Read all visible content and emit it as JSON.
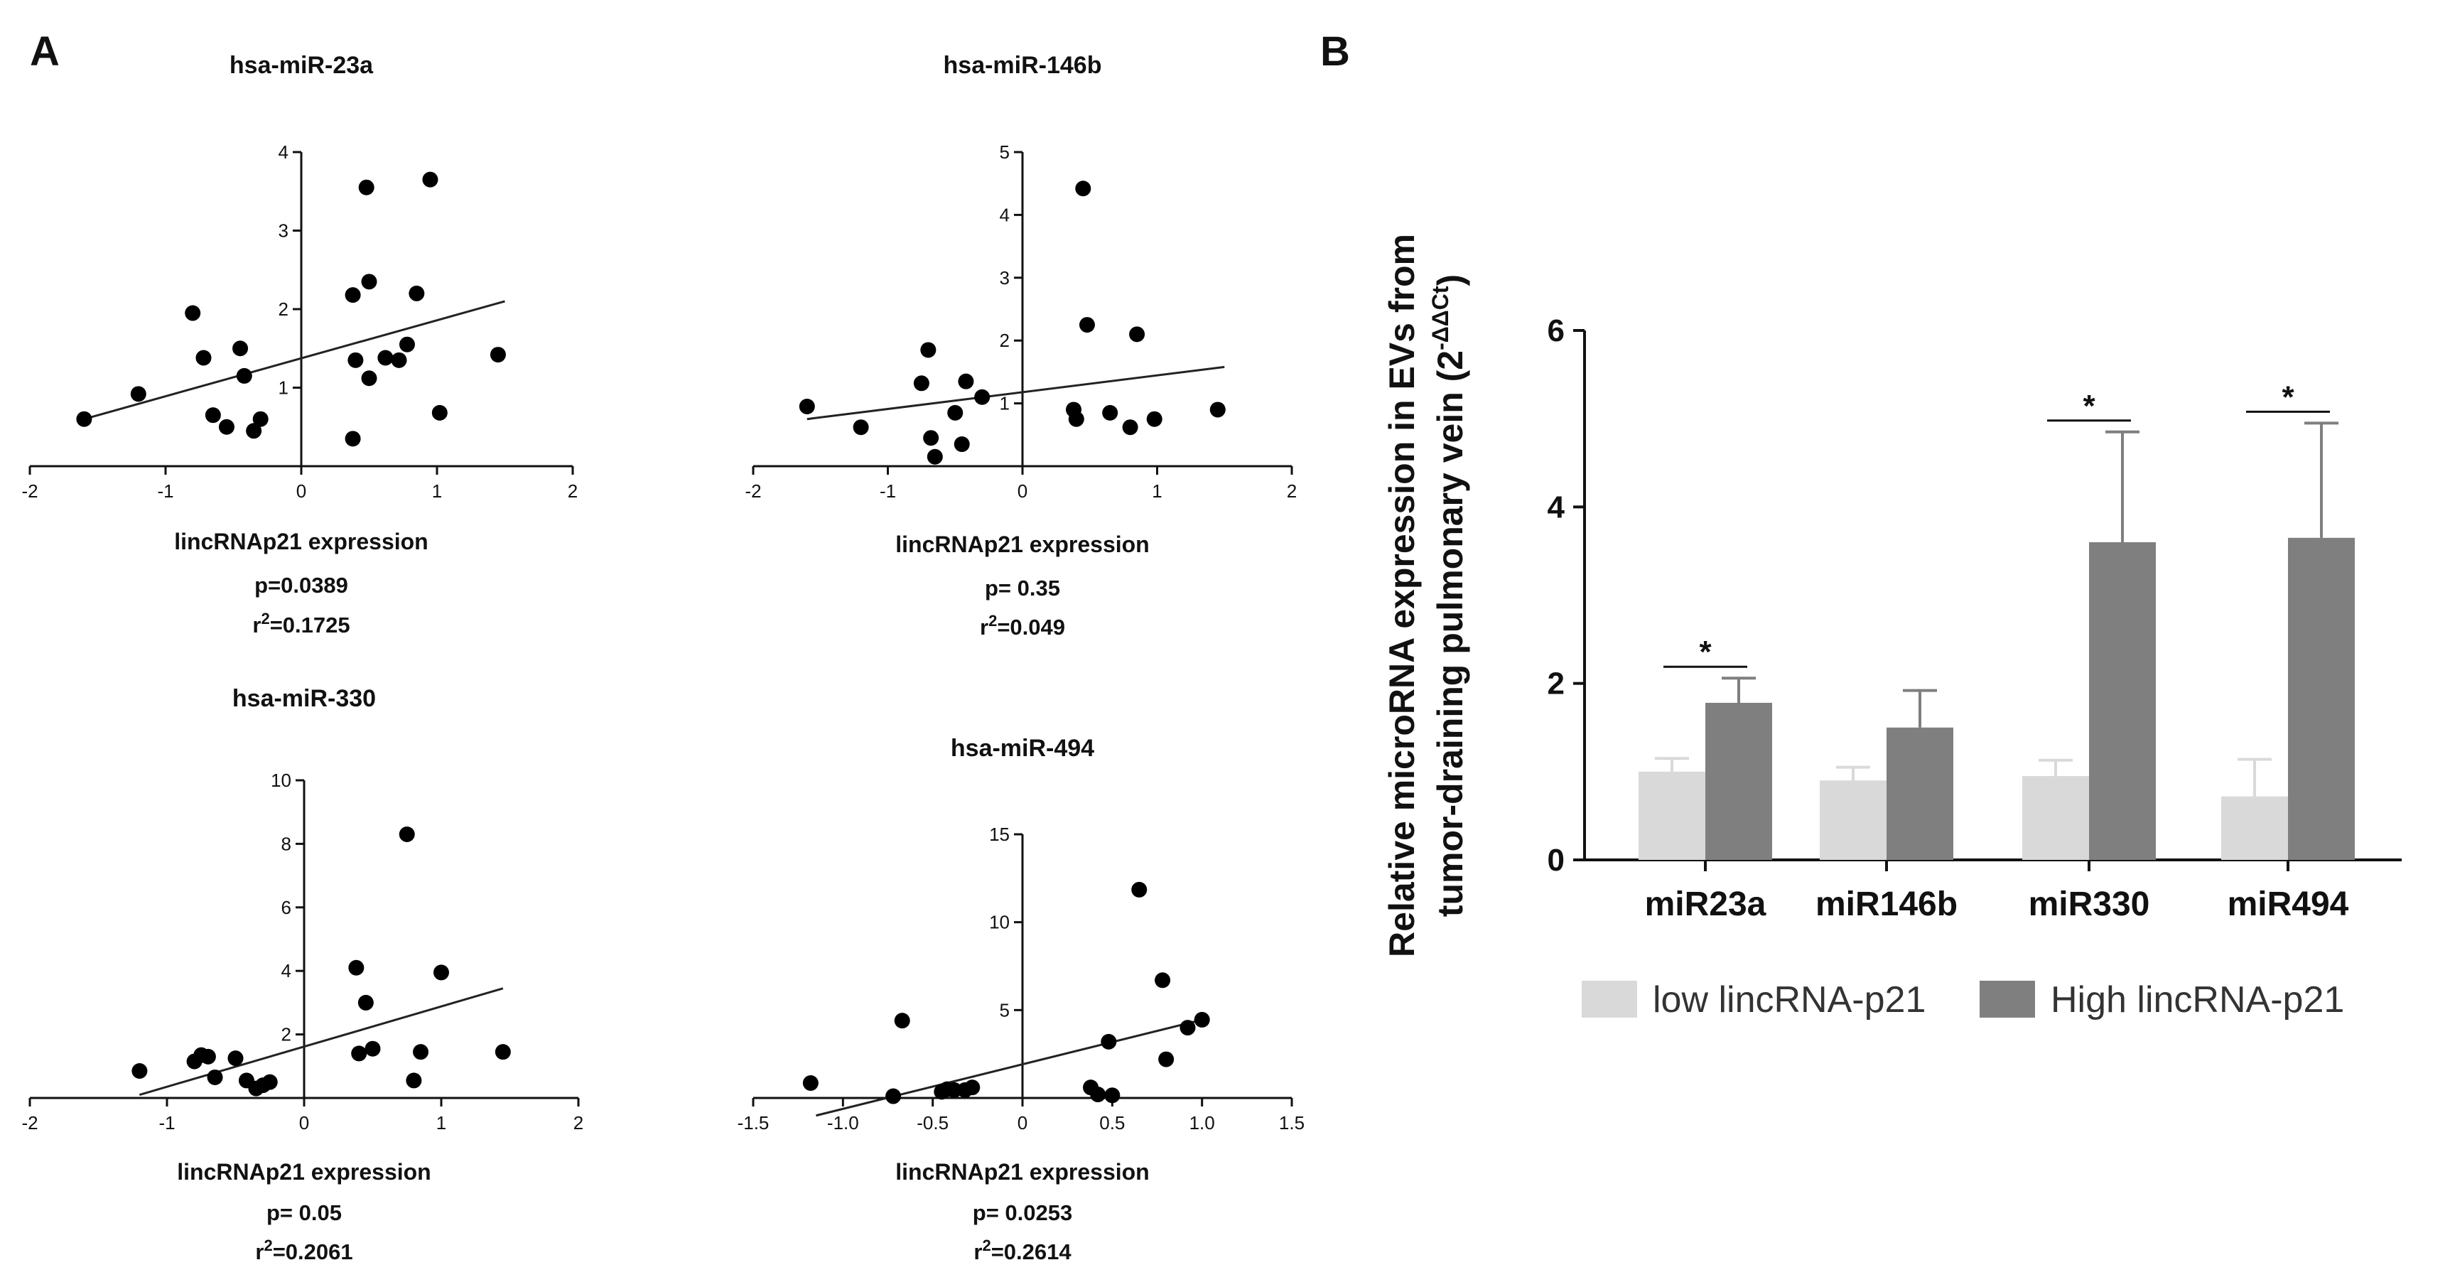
{
  "panels": {
    "a": "A",
    "b": "B"
  },
  "chart_data": [
    {
      "type": "scatter",
      "title": "hsa-miR-23a",
      "xlabel": "lincRNAp21 expression",
      "stat_p": "p=0.0389",
      "stat_r2_prefix": "r",
      "stat_r2_sup": "2",
      "stat_r2_value": "=0.1725",
      "xlim": [
        -2,
        2
      ],
      "ylim": [
        0,
        4
      ],
      "xticks": [
        -2,
        -1,
        0,
        1,
        2
      ],
      "yticks": [
        1,
        2,
        3,
        4
      ],
      "x_tick_labels": [
        "-2",
        "-1",
        "0",
        "1",
        "2"
      ],
      "y_tick_labels": [
        "1",
        "2",
        "3",
        "4"
      ],
      "points": [
        [
          -1.6,
          0.6
        ],
        [
          -1.2,
          0.92
        ],
        [
          -0.8,
          1.95
        ],
        [
          -0.72,
          1.38
        ],
        [
          -0.65,
          0.65
        ],
        [
          -0.55,
          0.5
        ],
        [
          -0.45,
          1.5
        ],
        [
          -0.42,
          1.15
        ],
        [
          -0.35,
          0.45
        ],
        [
          -0.3,
          0.6
        ],
        [
          0.38,
          0.35
        ],
        [
          0.4,
          1.35
        ],
        [
          0.38,
          2.18
        ],
        [
          0.48,
          3.55
        ],
        [
          0.5,
          2.35
        ],
        [
          0.5,
          1.12
        ],
        [
          0.62,
          1.38
        ],
        [
          0.72,
          1.35
        ],
        [
          0.78,
          1.55
        ],
        [
          0.85,
          2.2
        ],
        [
          0.95,
          3.65
        ],
        [
          1.02,
          0.68
        ],
        [
          1.45,
          1.42
        ]
      ],
      "fit": [
        [
          -1.6,
          0.6
        ],
        [
          1.5,
          2.1
        ]
      ]
    },
    {
      "type": "scatter",
      "title": "hsa-miR-146b",
      "xlabel": "lincRNAp21 expression",
      "stat_p": "p= 0.35",
      "stat_r2_prefix": "r",
      "stat_r2_sup": "2",
      "stat_r2_value": "=0.049",
      "xlim": [
        -2,
        2
      ],
      "ylim": [
        0,
        5
      ],
      "xticks": [
        -2,
        -1,
        0,
        1,
        2
      ],
      "yticks": [
        1,
        2,
        3,
        4,
        5
      ],
      "x_tick_labels": [
        "-2",
        "-1",
        "0",
        "1",
        "2"
      ],
      "y_tick_labels": [
        "1",
        "2",
        "3",
        "4",
        "5"
      ],
      "points": [
        [
          -1.6,
          0.95
        ],
        [
          -1.2,
          0.62
        ],
        [
          -0.75,
          1.32
        ],
        [
          -0.7,
          1.85
        ],
        [
          -0.68,
          0.45
        ],
        [
          -0.65,
          0.15
        ],
        [
          -0.5,
          0.85
        ],
        [
          -0.45,
          0.35
        ],
        [
          -0.42,
          1.35
        ],
        [
          -0.3,
          1.1
        ],
        [
          0.38,
          0.9
        ],
        [
          0.4,
          0.75
        ],
        [
          0.45,
          4.42
        ],
        [
          0.48,
          2.25
        ],
        [
          0.65,
          0.85
        ],
        [
          0.8,
          0.62
        ],
        [
          0.85,
          2.1
        ],
        [
          0.98,
          0.75
        ],
        [
          1.45,
          0.9
        ]
      ],
      "fit": [
        [
          -1.6,
          0.75
        ],
        [
          1.5,
          1.58
        ]
      ]
    },
    {
      "type": "scatter",
      "title": "hsa-miR-330",
      "xlabel": "lincRNAp21 expression",
      "stat_p": "p= 0.05",
      "stat_r2_prefix": "r",
      "stat_r2_sup": "2",
      "stat_r2_value": "=0.2061",
      "xlim": [
        -2,
        2
      ],
      "ylim": [
        0,
        10
      ],
      "xticks": [
        -2,
        -1,
        0,
        1,
        2
      ],
      "yticks": [
        2,
        4,
        6,
        8,
        10
      ],
      "x_tick_labels": [
        "-2",
        "-1",
        "0",
        "1",
        "2"
      ],
      "y_tick_labels": [
        "2",
        "4",
        "6",
        "8",
        "10"
      ],
      "points": [
        [
          -1.2,
          0.85
        ],
        [
          -0.8,
          1.15
        ],
        [
          -0.75,
          1.35
        ],
        [
          -0.7,
          1.3
        ],
        [
          -0.65,
          0.65
        ],
        [
          -0.5,
          1.25
        ],
        [
          -0.42,
          0.55
        ],
        [
          -0.35,
          0.3
        ],
        [
          -0.3,
          0.4
        ],
        [
          -0.25,
          0.5
        ],
        [
          0.38,
          4.1
        ],
        [
          0.4,
          1.4
        ],
        [
          0.45,
          3.0
        ],
        [
          0.5,
          1.55
        ],
        [
          0.75,
          8.3
        ],
        [
          0.8,
          0.55
        ],
        [
          0.85,
          1.45
        ],
        [
          1.0,
          3.95
        ],
        [
          1.45,
          1.45
        ]
      ],
      "fit": [
        [
          -1.2,
          0.1
        ],
        [
          1.45,
          3.45
        ]
      ]
    },
    {
      "type": "scatter",
      "title": "hsa-miR-494",
      "xlabel": "lincRNAp21 expression",
      "stat_p": "p= 0.0253",
      "stat_r2_prefix": "r",
      "stat_r2_sup": "2",
      "stat_r2_value": "=0.2614",
      "xlim": [
        -1.5,
        1.5
      ],
      "ylim": [
        0,
        15
      ],
      "xticks": [
        -1.5,
        -1.0,
        -0.5,
        0,
        0.5,
        1.0,
        1.5
      ],
      "yticks": [
        5,
        10,
        15
      ],
      "x_tick_labels": [
        "-1.5",
        "-1.0",
        "-0.5",
        "0",
        "0.5",
        "1.0",
        "1.5"
      ],
      "y_tick_labels": [
        "5",
        "10",
        "15"
      ],
      "points": [
        [
          -1.18,
          0.85
        ],
        [
          -0.72,
          0.1
        ],
        [
          -0.67,
          4.4
        ],
        [
          -0.45,
          0.35
        ],
        [
          -0.42,
          0.5
        ],
        [
          -0.38,
          0.45
        ],
        [
          -0.32,
          0.45
        ],
        [
          -0.28,
          0.6
        ],
        [
          0.38,
          0.6
        ],
        [
          0.42,
          0.2
        ],
        [
          0.48,
          3.2
        ],
        [
          0.5,
          0.15
        ],
        [
          0.65,
          11.85
        ],
        [
          0.78,
          6.7
        ],
        [
          0.8,
          2.2
        ],
        [
          0.92,
          4.0
        ],
        [
          1.0,
          4.45
        ]
      ],
      "fit": [
        [
          -1.15,
          -1.0
        ],
        [
          1.02,
          4.5
        ]
      ]
    },
    {
      "type": "bar",
      "categories": [
        "miR23a",
        "miR146b",
        "miR330",
        "miR494"
      ],
      "series": [
        {
          "name": "low lincRNA-p21",
          "color": "#d9d9d9",
          "values": [
            1.0,
            0.9,
            0.95,
            0.72
          ],
          "errors": [
            0.15,
            0.15,
            0.18,
            0.42
          ]
        },
        {
          "name": "High lincRNA-p21",
          "color": "#7f7f7f",
          "values": [
            1.78,
            1.5,
            3.6,
            3.65
          ],
          "errors": [
            0.28,
            0.42,
            1.25,
            1.3
          ]
        }
      ],
      "significance": [
        "*",
        "",
        "*",
        "*"
      ],
      "ylim": [
        0,
        6
      ],
      "yticks": [
        0,
        2,
        4,
        6
      ],
      "y_tick_labels": [
        "0",
        "2",
        "4",
        "6"
      ],
      "ylabel_line1": "Relative microRNA expression in EVs from",
      "ylabel_line2_main": "tumor-draining pulmonary vein (2",
      "ylabel_line2_sup": "-ΔΔCt",
      "ylabel_line2_end": ")"
    }
  ]
}
